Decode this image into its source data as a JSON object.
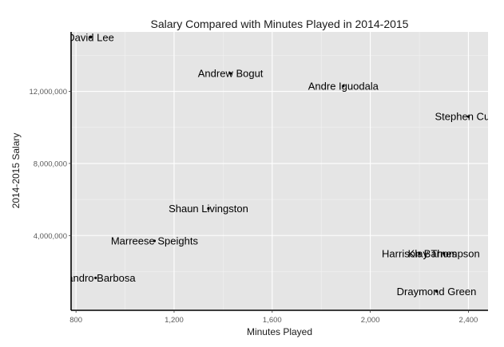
{
  "chart_data": {
    "type": "scatter",
    "title": "Salary Compared with Minutes Played in 2014-2015",
    "xlabel": "Minutes Played",
    "ylabel": "2014-2015 Salary",
    "xlim": [
      780,
      2480
    ],
    "ylim": [
      -150000,
      15300000
    ],
    "x_ticks": [
      {
        "value": 800,
        "label": "800"
      },
      {
        "value": 1200,
        "label": "1,200"
      },
      {
        "value": 1600,
        "label": "1,600"
      },
      {
        "value": 2000,
        "label": "2,000"
      },
      {
        "value": 2400,
        "label": "2,400"
      }
    ],
    "y_ticks": [
      {
        "value": 4000000,
        "label": "4,000,000"
      },
      {
        "value": 8000000,
        "label": "8,000,000"
      },
      {
        "value": 12000000,
        "label": "12,000,000"
      }
    ],
    "grid": true,
    "points": [
      {
        "name": "David Lee",
        "x": 860,
        "y": 15000000
      },
      {
        "name": "Andrew Bogut",
        "x": 1430,
        "y": 13000000
      },
      {
        "name": "Andre Iguodala",
        "x": 1890,
        "y": 12300000
      },
      {
        "name": "Stephen Curry",
        "x": 2400,
        "y": 10600000
      },
      {
        "name": "Shaun Livingston",
        "x": 1340,
        "y": 5500000
      },
      {
        "name": "Marreese Speights",
        "x": 1120,
        "y": 3700000
      },
      {
        "name": "Leandro Barbosa",
        "x": 880,
        "y": 1650000
      },
      {
        "name": "Harrison Barnes",
        "x": 2200,
        "y": 3000000
      },
      {
        "name": "Klay Thompson",
        "x": 2300,
        "y": 3000000
      },
      {
        "name": "Draymond Green",
        "x": 2270,
        "y": 900000
      }
    ]
  },
  "colors": {
    "panel": "#e5e5e5",
    "grid_major": "#ffffff",
    "grid_minor": "#f2f2f2",
    "axis": "#000000",
    "point": "#000000"
  }
}
